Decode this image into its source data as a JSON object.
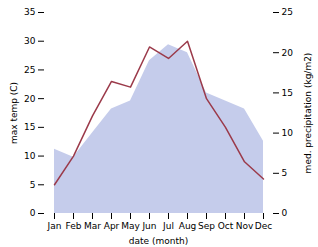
{
  "chart_data": {
    "type": "line",
    "xlabel": "date (month)",
    "ylabel": "max temp (C)",
    "y2label": "med. precipitation (kg/m2)",
    "categories": [
      "Jan",
      "Feb",
      "Mar",
      "Apr",
      "May",
      "Jun",
      "Jul",
      "Aug",
      "Sep",
      "Oct",
      "Nov",
      "Dec"
    ],
    "series": [
      {
        "type": "area",
        "axis": "y2",
        "color": "#c5cceb",
        "values": [
          8,
          7,
          10,
          13,
          14,
          19,
          21,
          20,
          15,
          14,
          13,
          9
        ]
      },
      {
        "type": "line",
        "color": "#9b3a4a",
        "values": [
          5,
          10,
          17,
          23,
          22,
          29,
          27,
          30,
          20,
          15,
          9,
          6
        ]
      }
    ],
    "ylim": [
      0,
      35
    ],
    "yticks": [
      0,
      5,
      10,
      15,
      20,
      25,
      30,
      35
    ],
    "y2lim": [
      0,
      25
    ],
    "y2ticks": [
      0,
      5,
      10,
      15,
      20,
      25
    ],
    "grid": false
  }
}
